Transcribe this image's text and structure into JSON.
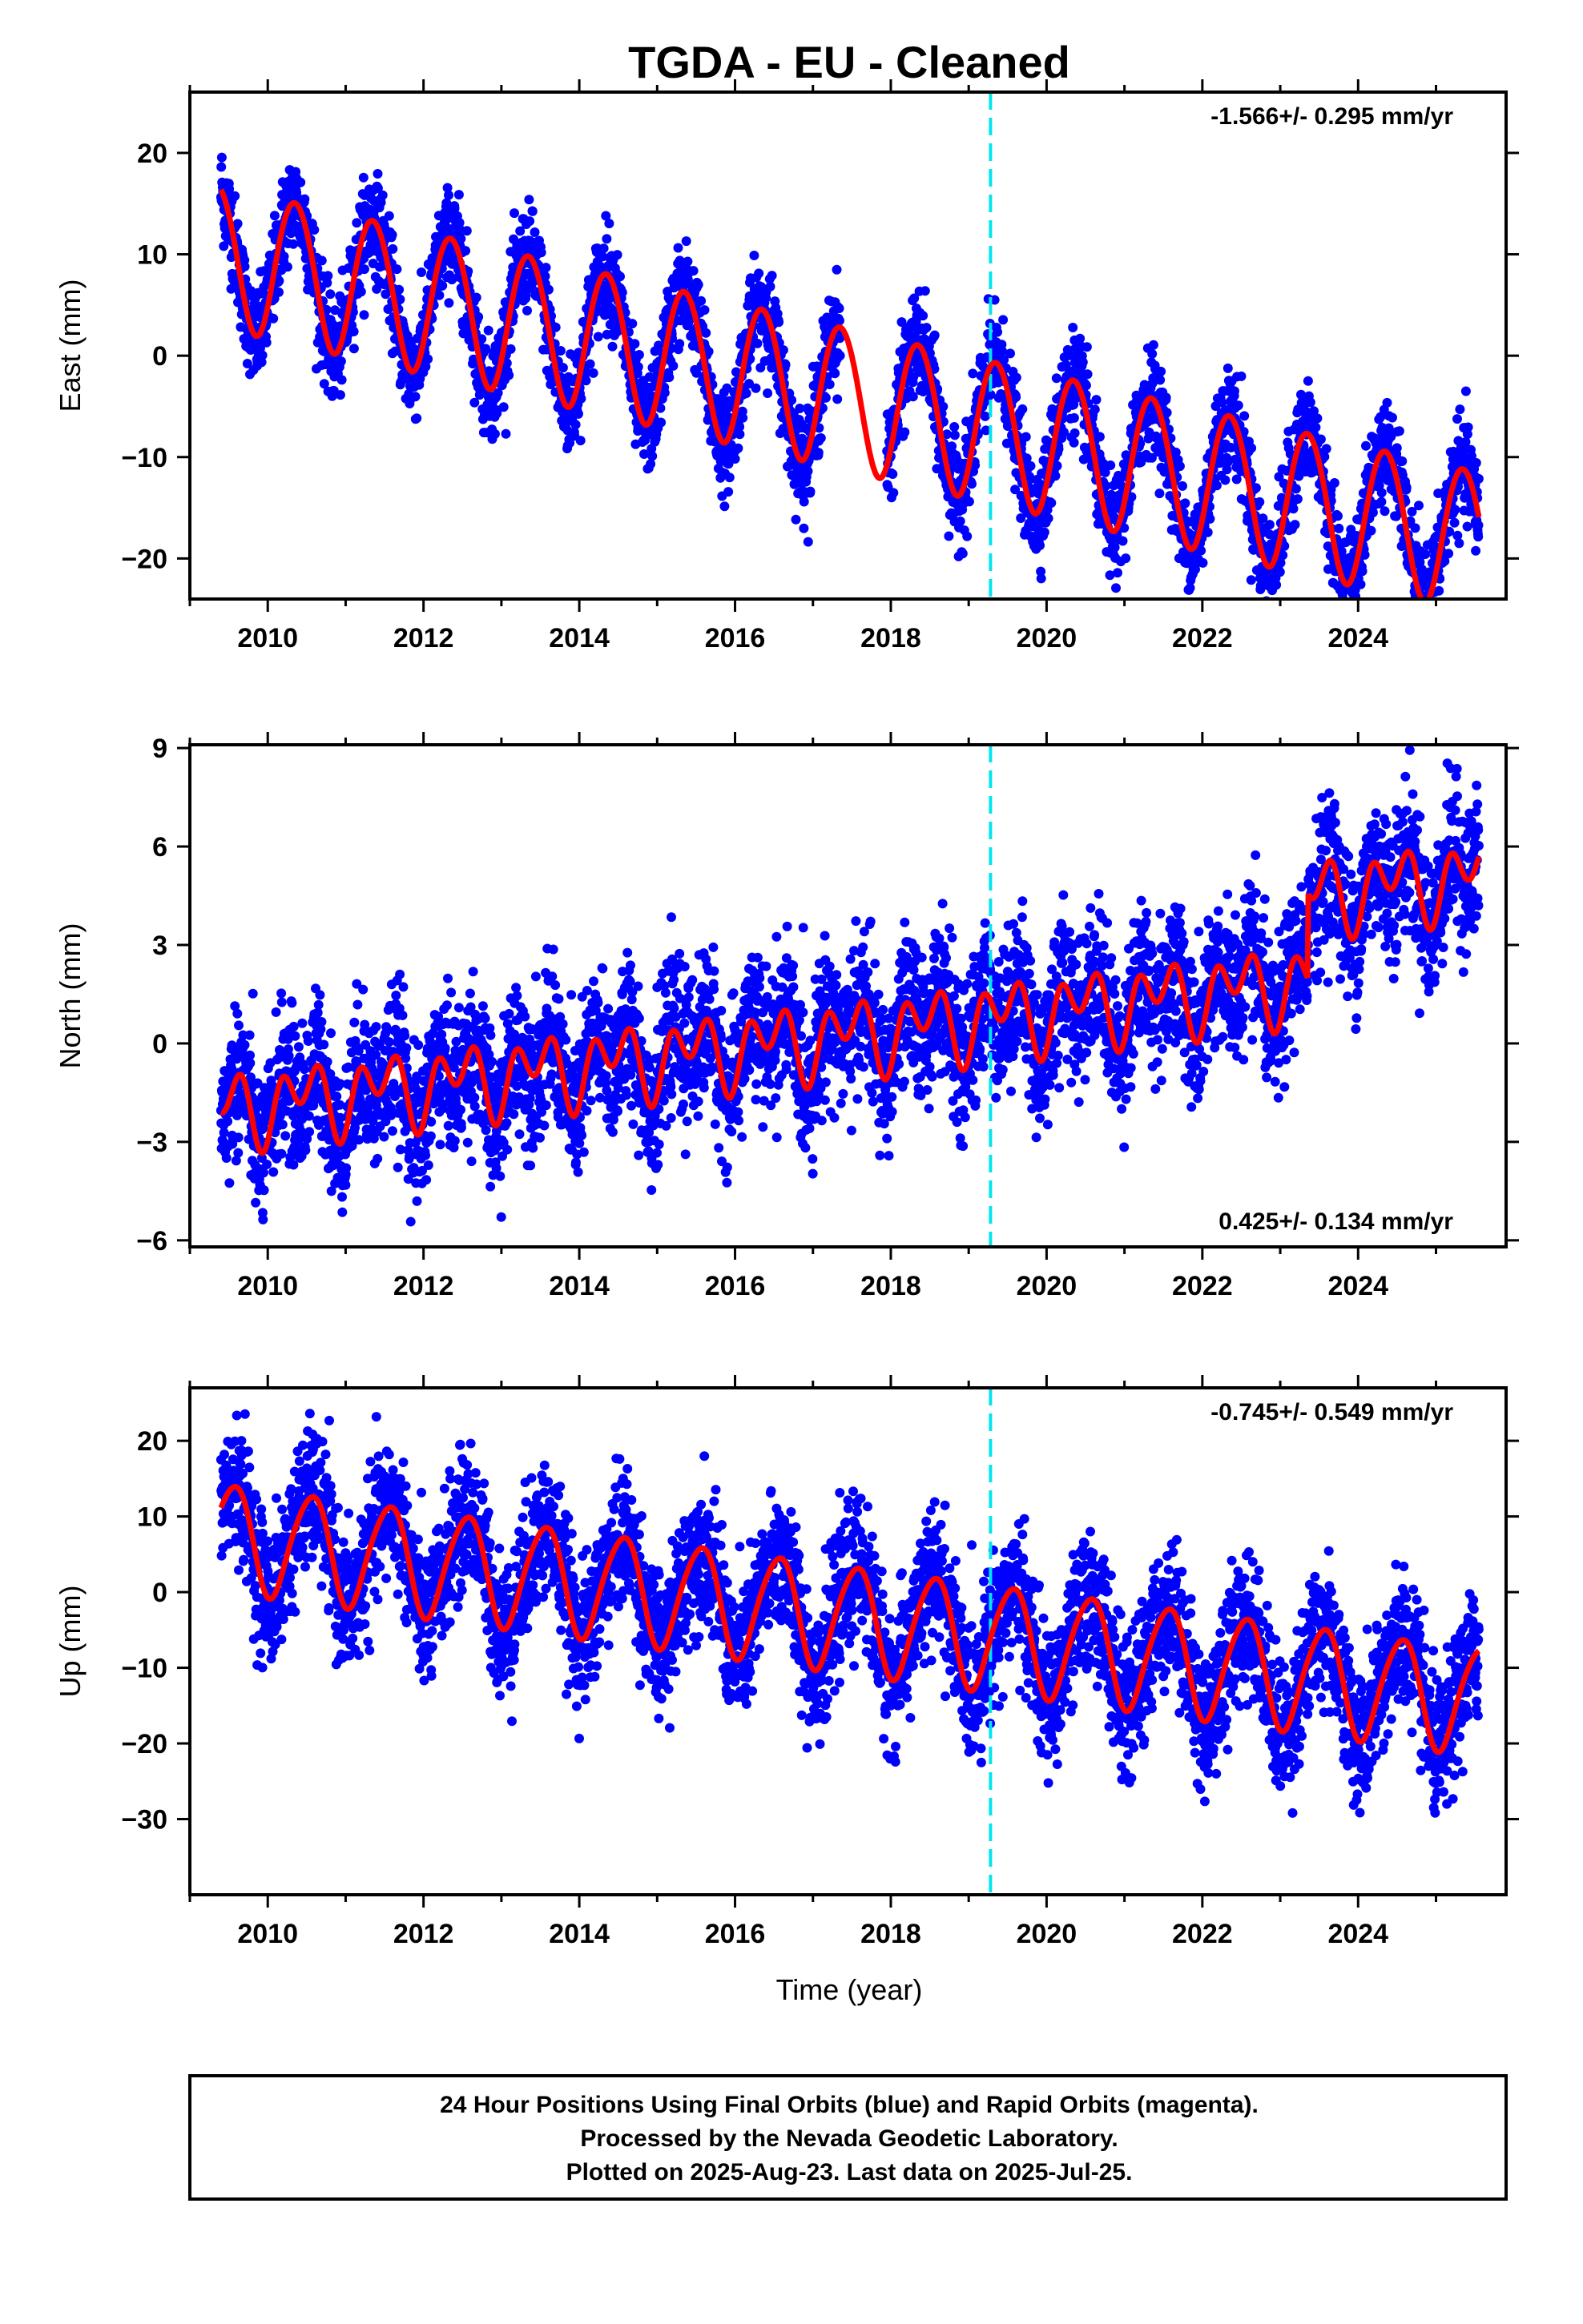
{
  "title": "TGDA  - EU - Cleaned",
  "x_axis_label": "Time (year)",
  "footer": {
    "line1": "24 Hour Positions Using Final Orbits (blue) and Rapid Orbits (magenta).",
    "line2": "Processed by the Nevada Geodetic Laboratory.",
    "line3": "Plotted on 2025-Aug-23. Last data on 2025-Jul-25."
  },
  "colors": {
    "data_points": "#0000ff",
    "model_fit": "#ff0000",
    "equipment_change": "#00e5ee",
    "frame": "#000000"
  },
  "chart_data": [
    {
      "type": "scatter",
      "panel": "east",
      "ylabel": "East (mm)",
      "xlim": [
        2009.0,
        2025.9
      ],
      "ylim": [
        -24,
        26
      ],
      "yticks": [
        -20,
        -10,
        0,
        10,
        20
      ],
      "xticks": [
        2010,
        2012,
        2014,
        2016,
        2018,
        2020,
        2022,
        2024
      ],
      "rate_text": "-1.566+/- 0.295 mm/yr",
      "rate_position": "top-right",
      "model": {
        "start": 2009.4,
        "end": 2025.55,
        "base": 10.0,
        "trend": -1.75,
        "annual_amp": 7.0,
        "annual_phase": 0.1,
        "semiannual_amp": 0.3,
        "semiannual_phase": 0.0,
        "offset_epoch": null,
        "offset": 0
      },
      "scatter_noise": 2.4,
      "equipment_change_epoch": 2019.28,
      "gap": [
        2017.35,
        2017.95
      ]
    },
    {
      "type": "scatter",
      "panel": "north",
      "ylabel": "North (mm)",
      "xlim": [
        2009.0,
        2025.9
      ],
      "ylim": [
        -6.2,
        9.1
      ],
      "yticks": [
        -6,
        -3,
        0,
        3,
        6,
        9
      ],
      "xticks": [
        2010,
        2012,
        2014,
        2016,
        2018,
        2020,
        2022,
        2024
      ],
      "rate_text": "0.425+/- 0.134 mm/yr",
      "rate_position": "bottom-right",
      "model": {
        "start": 2009.4,
        "end": 2025.55,
        "base": -2.0,
        "trend": 0.28,
        "annual_amp": 0.7,
        "annual_phase": 0.2,
        "semiannual_amp": 0.8,
        "semiannual_phase": 0.05,
        "offset_epoch": 2023.35,
        "offset": 2.6
      },
      "scatter_noise": 1.1,
      "equipment_change_epoch": 2019.28,
      "gap": null
    },
    {
      "type": "scatter",
      "panel": "up",
      "ylabel": "Up (mm)",
      "xlim": [
        2009.0,
        2025.9
      ],
      "ylim": [
        -40,
        27
      ],
      "yticks": [
        -30,
        -20,
        -10,
        0,
        10,
        20
      ],
      "xticks": [
        2010,
        2012,
        2014,
        2016,
        2018,
        2020,
        2022,
        2024
      ],
      "rate_text": "-0.745+/- 0.549 mm/yr",
      "rate_position": "top-right",
      "model": {
        "start": 2009.4,
        "end": 2025.55,
        "base": 7.5,
        "trend": -1.35,
        "annual_amp": 7.0,
        "annual_phase": 0.3,
        "semiannual_amp": 0.8,
        "semiannual_phase": 0.1,
        "offset_epoch": null,
        "offset": 0
      },
      "scatter_noise": 4.5,
      "equipment_change_epoch": 2019.28,
      "gap": null
    }
  ]
}
